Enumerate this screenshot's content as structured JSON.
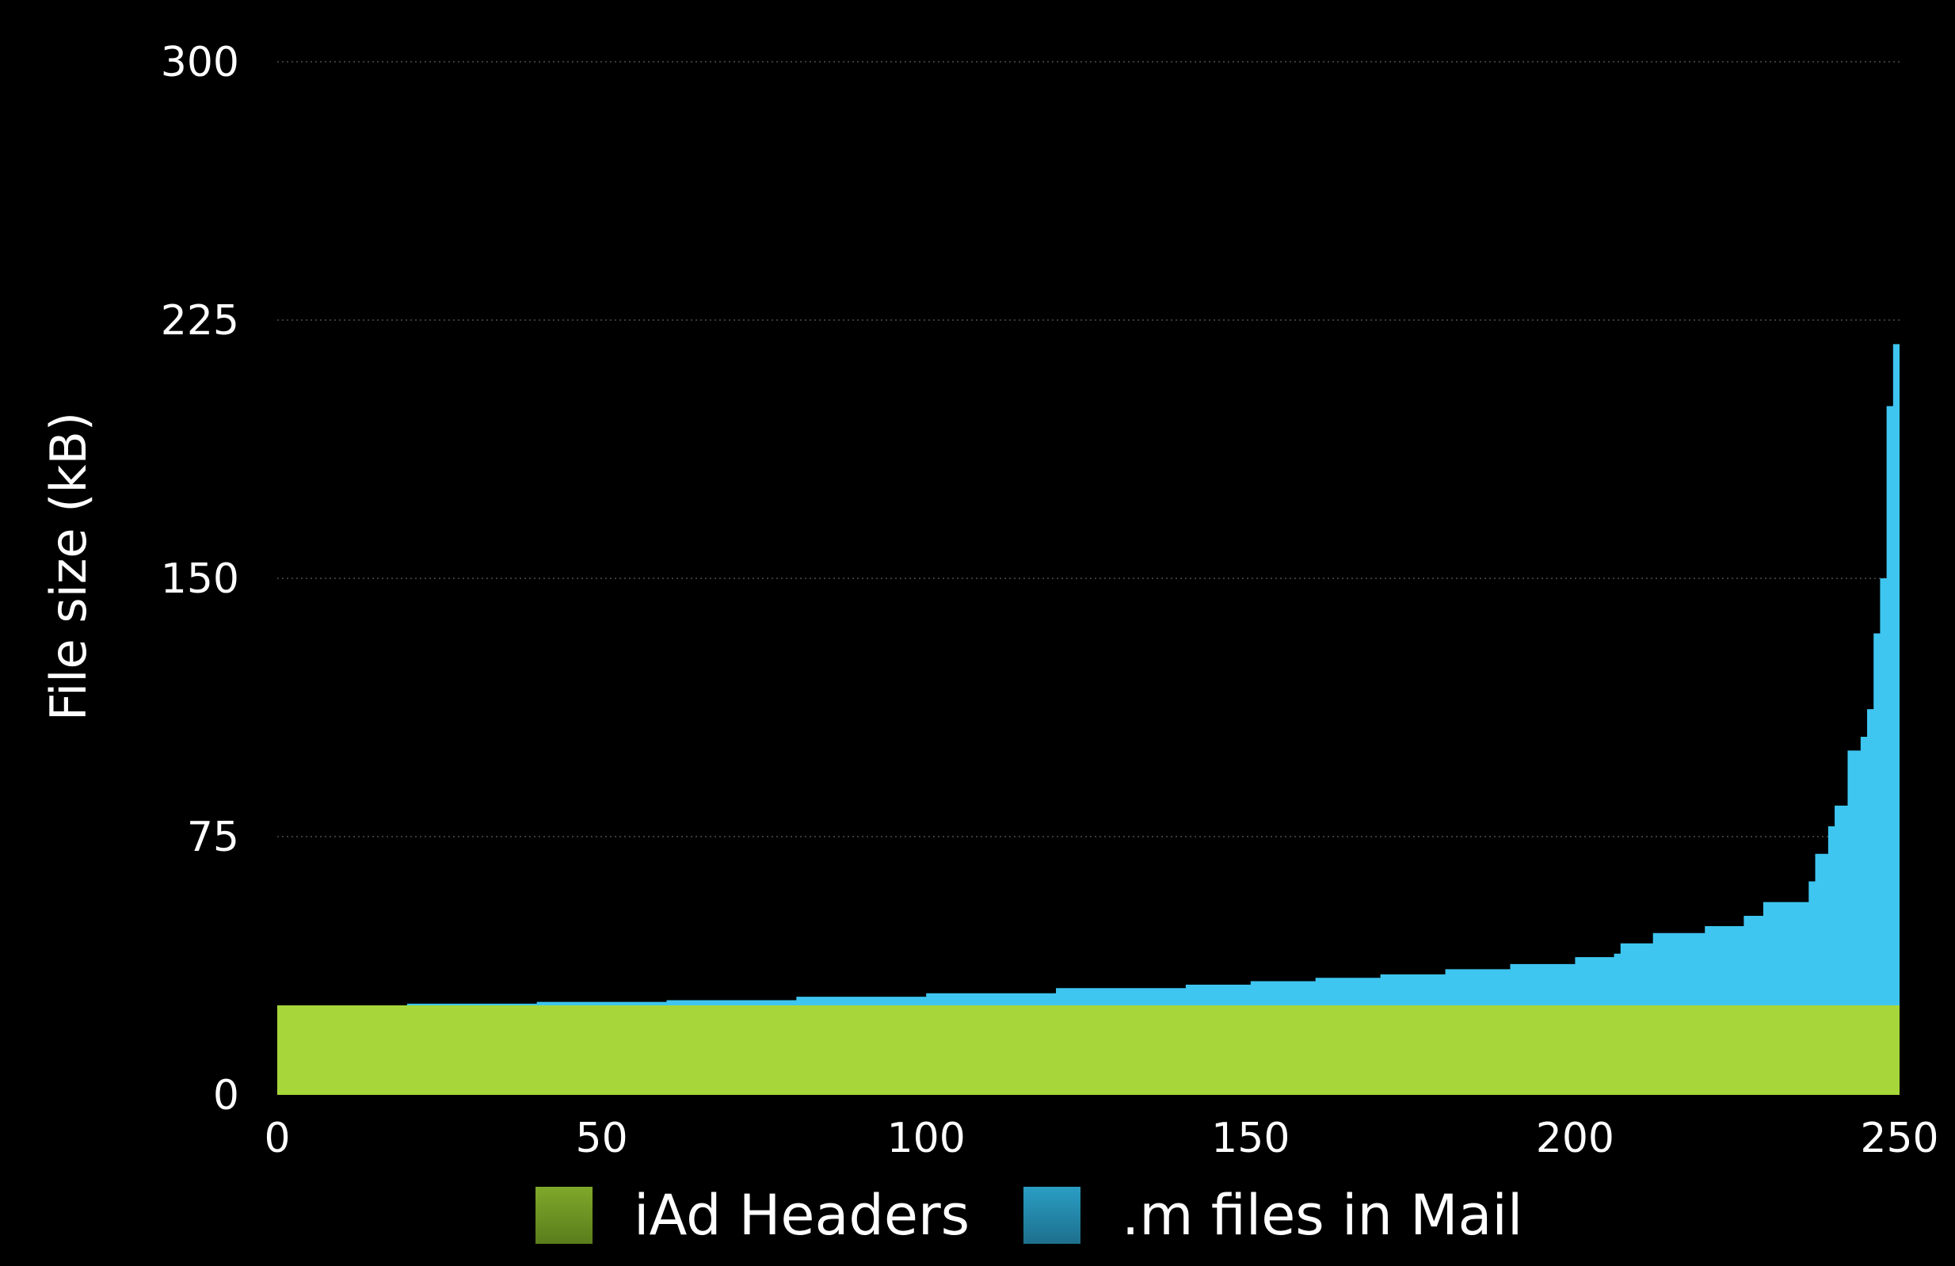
{
  "chart_data": {
    "type": "area",
    "title": "",
    "xlabel": "",
    "ylabel": "File size (kB)",
    "xlim": [
      0,
      250
    ],
    "ylim": [
      0,
      300
    ],
    "x_ticks": [
      "0",
      "50",
      "100",
      "150",
      "200",
      "250"
    ],
    "y_ticks": [
      "0",
      "75",
      "150",
      "225",
      "300"
    ],
    "grid": true,
    "legend_position": "bottom",
    "series": [
      {
        "name": "iAd Headers",
        "color": "#a6d63a",
        "points": [
          [
            0,
            26
          ],
          [
            250,
            26
          ]
        ]
      },
      {
        "name": ".m files in Mail",
        "color": "#3ec6f0",
        "stacked_on": "iAd Headers",
        "points": [
          [
            0,
            26
          ],
          [
            20,
            26.5
          ],
          [
            40,
            27
          ],
          [
            60,
            27.5
          ],
          [
            80,
            28.5
          ],
          [
            100,
            29.5
          ],
          [
            120,
            31
          ],
          [
            140,
            32
          ],
          [
            150,
            33
          ],
          [
            160,
            34
          ],
          [
            170,
            35
          ],
          [
            180,
            36.5
          ],
          [
            190,
            38
          ],
          [
            200,
            40
          ],
          [
            206,
            41
          ],
          [
            207,
            44
          ],
          [
            212,
            47
          ],
          [
            220,
            49
          ],
          [
            226,
            52
          ],
          [
            229,
            56
          ],
          [
            236,
            62
          ],
          [
            237,
            70
          ],
          [
            239,
            78
          ],
          [
            240,
            84
          ],
          [
            242,
            100
          ],
          [
            244,
            104
          ],
          [
            245,
            112
          ],
          [
            246,
            134
          ],
          [
            247,
            150
          ],
          [
            248,
            200
          ],
          [
            249,
            218
          ],
          [
            250,
            225
          ]
        ]
      }
    ]
  }
}
